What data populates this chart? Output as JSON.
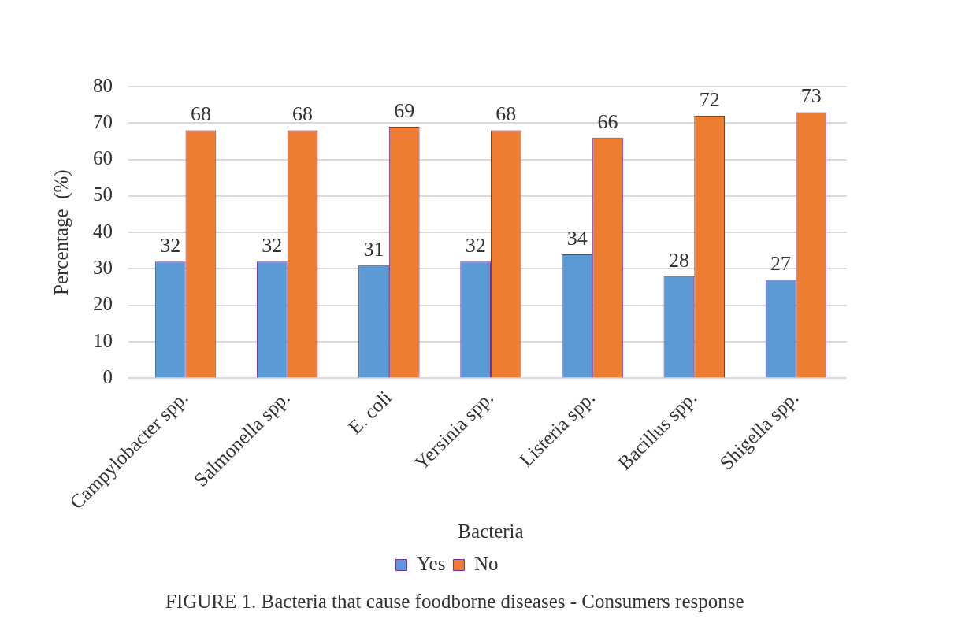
{
  "chart_data": {
    "type": "bar",
    "categories": [
      "Campylobacter spp.",
      "Salmonella spp.",
      "E. coli",
      "Yersinia spp.",
      "Listeria spp.",
      "Bacillus spp.",
      "Shigella spp."
    ],
    "series": [
      {
        "name": "Yes",
        "color": "#5b9bd5",
        "values": [
          32,
          32,
          31,
          32,
          34,
          28,
          27
        ]
      },
      {
        "name": "No",
        "color": "#ed7d31",
        "values": [
          68,
          68,
          69,
          68,
          66,
          72,
          73
        ]
      }
    ],
    "xlabel": "Bacteria",
    "ylabel": "Percentage  (%)",
    "ylim": [
      0,
      80
    ],
    "yticks": [
      0,
      10,
      20,
      30,
      40,
      50,
      60,
      70,
      80
    ],
    "grid": "y",
    "legend": "bottom",
    "data_labels": true,
    "annotations": [
      "FIGURE 1. Bacteria that cause foodborne diseases - Consumers response"
    ]
  }
}
